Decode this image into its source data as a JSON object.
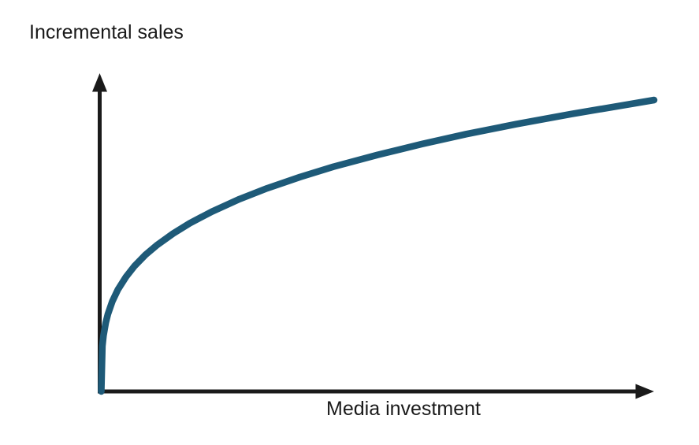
{
  "page": {
    "background": "#ffffff",
    "text_color": "#1a1a1a"
  },
  "chart_data": {
    "type": "line",
    "title": "",
    "ylabel": "Incremental sales",
    "xlabel": "Media investment",
    "grid": false,
    "legend": false,
    "axes": {
      "style": "arrowed axes, no tick marks, no tick labels",
      "color": "#1a1a1a"
    },
    "xlim": [
      0,
      1
    ],
    "ylim": [
      0,
      1
    ],
    "series": [
      {
        "name": "media-response-curve",
        "description": "concave saturating (diminishing returns) curve, approximately y = x^0.3",
        "color": "#1e5a78",
        "stroke_width": 8.5,
        "x": [
          0,
          0.002,
          0.004,
          0.008,
          0.012,
          0.02,
          0.03,
          0.045,
          0.06,
          0.08,
          0.1,
          0.13,
          0.16,
          0.2,
          0.25,
          0.3,
          0.36,
          0.42,
          0.5,
          0.58,
          0.66,
          0.75,
          0.85,
          1.0
        ],
        "y": [
          0,
          0.155,
          0.191,
          0.235,
          0.265,
          0.309,
          0.349,
          0.394,
          0.43,
          0.469,
          0.501,
          0.542,
          0.577,
          0.617,
          0.66,
          0.697,
          0.736,
          0.771,
          0.812,
          0.849,
          0.883,
          0.917,
          0.952,
          1.0
        ]
      }
    ]
  }
}
